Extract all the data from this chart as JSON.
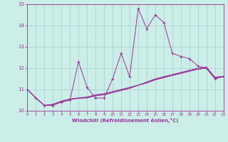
{
  "x_values": [
    0,
    1,
    2,
    3,
    4,
    5,
    6,
    7,
    8,
    9,
    10,
    11,
    12,
    13,
    14,
    15,
    16,
    17,
    18,
    19,
    20,
    21,
    22,
    23
  ],
  "line1_y": [
    11.0,
    10.6,
    10.25,
    10.25,
    10.4,
    10.5,
    12.3,
    11.1,
    10.6,
    10.6,
    11.5,
    12.7,
    11.6,
    14.8,
    13.85,
    14.5,
    14.15,
    12.7,
    12.55,
    12.45,
    12.1,
    12.0,
    11.5,
    11.6
  ],
  "line2_y": [
    11.0,
    10.6,
    10.25,
    10.3,
    10.45,
    10.55,
    10.6,
    10.6,
    10.7,
    10.75,
    10.85,
    10.95,
    11.05,
    11.2,
    11.3,
    11.45,
    11.55,
    11.65,
    11.75,
    11.85,
    11.95,
    12.0,
    11.55,
    11.6
  ],
  "line3_y": [
    11.0,
    10.6,
    10.25,
    10.3,
    10.45,
    10.55,
    10.6,
    10.65,
    10.75,
    10.8,
    10.9,
    11.0,
    11.1,
    11.2,
    11.35,
    11.5,
    11.6,
    11.7,
    11.8,
    11.9,
    12.0,
    12.05,
    11.58,
    11.62
  ],
  "line4_y": [
    11.0,
    10.6,
    10.25,
    10.3,
    10.44,
    10.53,
    10.58,
    10.62,
    10.72,
    10.78,
    10.88,
    10.98,
    11.08,
    11.2,
    11.32,
    11.48,
    11.58,
    11.68,
    11.78,
    11.88,
    11.95,
    12.02,
    11.56,
    11.6
  ],
  "line_color": "#993399",
  "bg_color": "#cceee8",
  "grid_color": "#aacccc",
  "xlabel": "Windchill (Refroidissement éolien,°C)",
  "xlim": [
    0,
    23
  ],
  "ylim": [
    10,
    15
  ],
  "xticks": [
    0,
    1,
    2,
    3,
    4,
    5,
    6,
    7,
    8,
    9,
    10,
    11,
    12,
    13,
    14,
    15,
    16,
    17,
    18,
    19,
    20,
    21,
    22,
    23
  ],
  "yticks": [
    10,
    11,
    12,
    13,
    14,
    15
  ]
}
